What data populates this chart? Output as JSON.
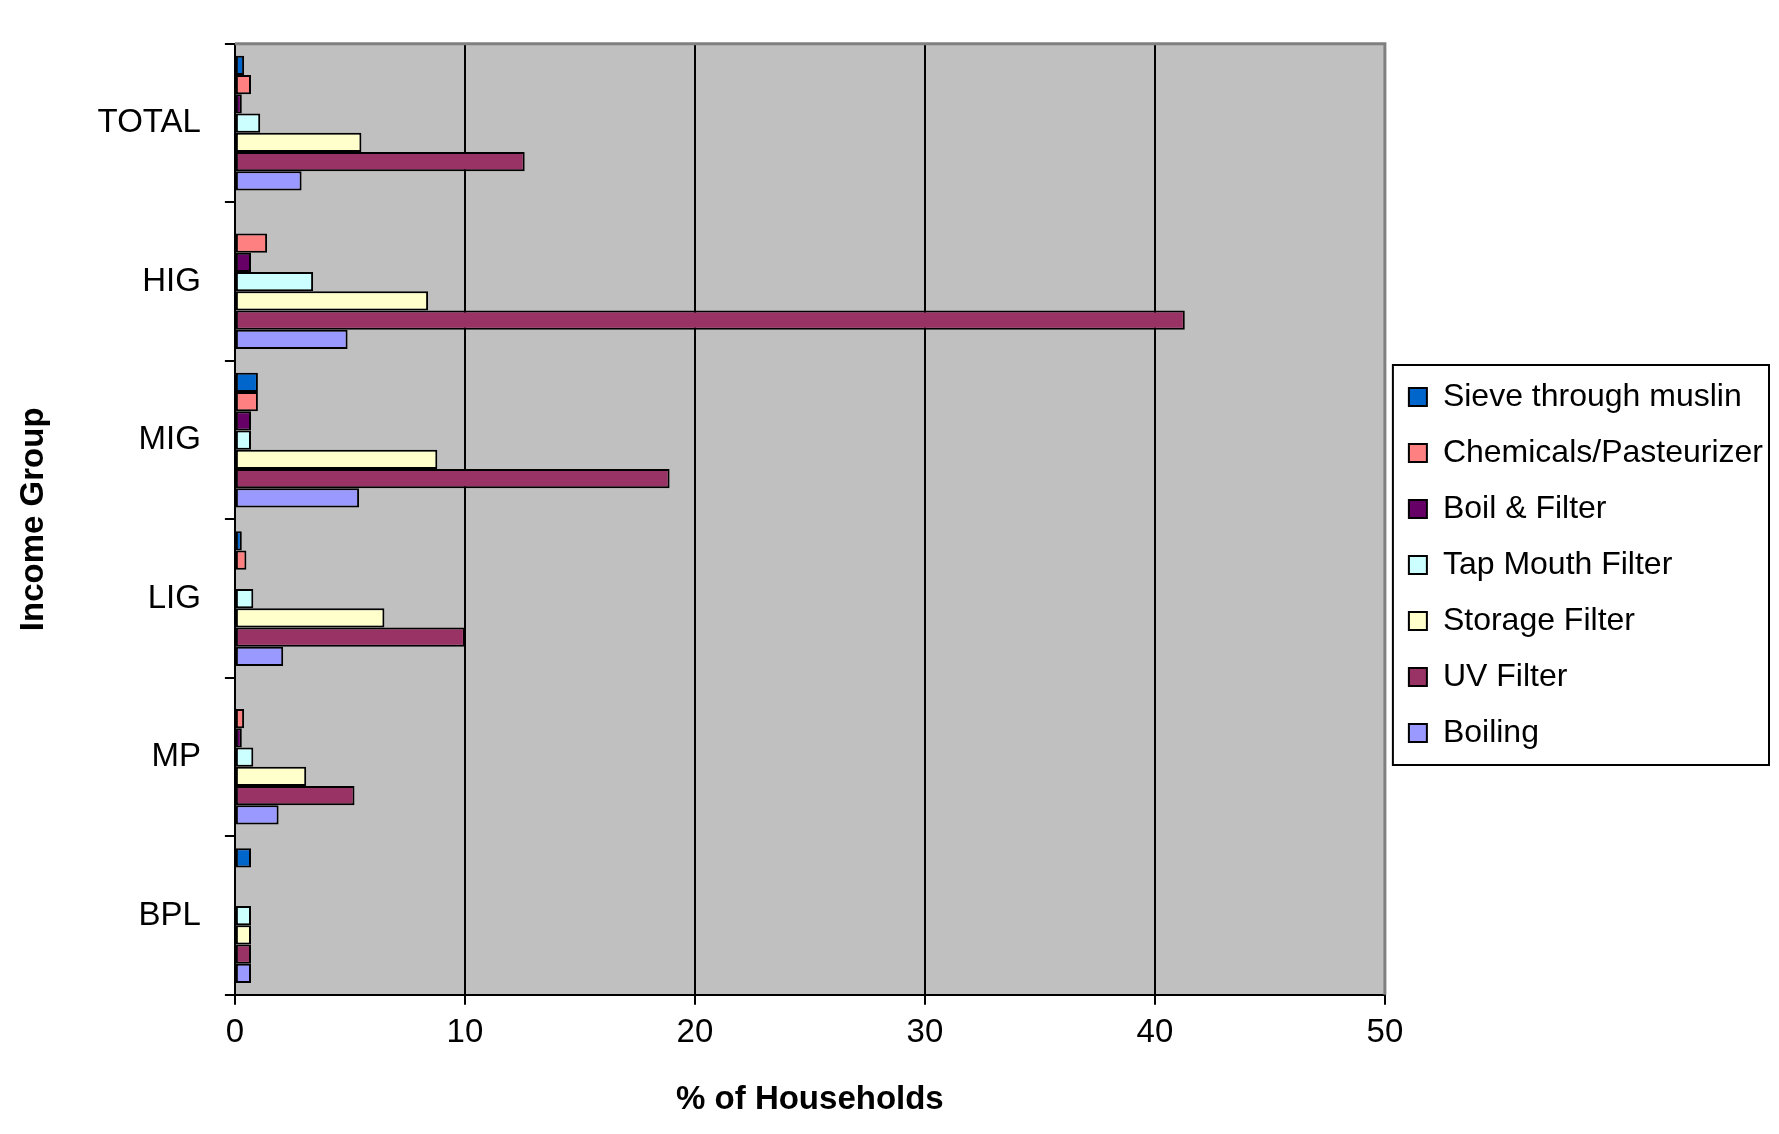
{
  "chart_data": {
    "type": "bar",
    "orientation": "horizontal",
    "xlabel": "% of Households",
    "ylabel": "Income Group",
    "categories": [
      "TOTAL",
      "HIG",
      "MIG",
      "LIG",
      "MP",
      "BPL"
    ],
    "series": [
      {
        "name": "Sieve through muslin",
        "color": "#0066cc",
        "values": [
          0.4,
          0,
          1.0,
          0.3,
          0,
          0.7
        ]
      },
      {
        "name": "Chemicals/Pasteurizer",
        "color": "#ff8080",
        "values": [
          0.7,
          1.4,
          1.0,
          0.5,
          0.4,
          0
        ]
      },
      {
        "name": "Boil & Filter",
        "color": "#660066",
        "values": [
          0.3,
          0.7,
          0.7,
          0,
          0.3,
          0
        ]
      },
      {
        "name": "Tap Mouth Filter",
        "color": "#ccffff",
        "values": [
          1.1,
          3.4,
          0.7,
          0.8,
          0.8,
          0.7
        ]
      },
      {
        "name": "Storage Filter",
        "color": "#ffffcc",
        "values": [
          5.5,
          8.4,
          8.8,
          6.5,
          3.1,
          0.7
        ]
      },
      {
        "name": "UV Filter",
        "color": "#993366",
        "values": [
          12.6,
          41.3,
          18.9,
          10.0,
          5.2,
          0.7
        ]
      },
      {
        "name": "Boiling",
        "color": "#9999ff",
        "values": [
          2.9,
          4.9,
          5.4,
          2.1,
          1.9,
          0.7
        ]
      }
    ],
    "xlim": [
      0,
      50
    ],
    "xticks": [
      0,
      10,
      20,
      30,
      40,
      50
    ],
    "grid": "x",
    "legend": "right"
  }
}
